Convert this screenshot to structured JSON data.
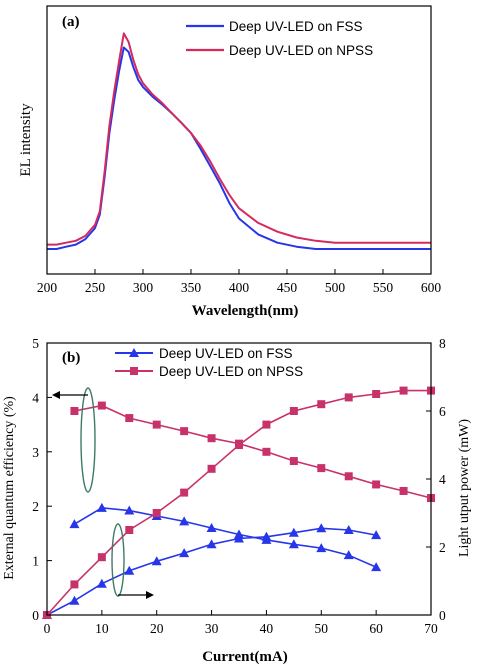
{
  "chart_data": [
    {
      "panel_label": "(a)",
      "type": "line",
      "xlabel": "Wavelength(nm)",
      "ylabel": "EL intensity",
      "xlim": [
        200,
        600
      ],
      "x_ticks": [
        200,
        250,
        300,
        350,
        400,
        450,
        500,
        550,
        600
      ],
      "y_scale": "log",
      "y_tick_labels": "none",
      "grid": false,
      "legend": "top-right",
      "series": [
        {
          "name": "Deep UV-LED on FSS",
          "color": "#2636e8",
          "x": [
            200,
            210,
            220,
            230,
            240,
            250,
            255,
            260,
            265,
            270,
            275,
            280,
            285,
            290,
            295,
            300,
            310,
            320,
            330,
            340,
            350,
            360,
            370,
            380,
            390,
            400,
            420,
            440,
            460,
            480,
            500,
            520,
            540,
            560,
            580,
            600
          ],
          "y": [
            0.12,
            0.12,
            0.13,
            0.14,
            0.17,
            0.25,
            0.4,
            1.5,
            7,
            22,
            60,
            140,
            120,
            70,
            45,
            35,
            25,
            19,
            14,
            10,
            7,
            4,
            2.2,
            1.2,
            0.6,
            0.35,
            0.2,
            0.15,
            0.13,
            0.12,
            0.12,
            0.12,
            0.12,
            0.12,
            0.12,
            0.12
          ]
        },
        {
          "name": "Deep UV-LED on NPSS",
          "color": "#d42a5e",
          "x": [
            200,
            210,
            220,
            230,
            240,
            250,
            255,
            260,
            265,
            270,
            275,
            280,
            285,
            290,
            295,
            300,
            310,
            320,
            330,
            340,
            350,
            360,
            370,
            380,
            390,
            400,
            420,
            440,
            460,
            480,
            500,
            520,
            540,
            560,
            580,
            600
          ],
          "y": [
            0.14,
            0.14,
            0.15,
            0.16,
            0.19,
            0.28,
            0.45,
            1.8,
            9,
            30,
            85,
            230,
            170,
            90,
            55,
            40,
            27,
            20,
            14,
            10,
            7,
            4.5,
            2.6,
            1.4,
            0.8,
            0.5,
            0.3,
            0.22,
            0.18,
            0.16,
            0.15,
            0.15,
            0.15,
            0.15,
            0.15,
            0.15
          ]
        }
      ]
    },
    {
      "panel_label": "(b)",
      "type": "line",
      "xlabel": "Current(mA)",
      "ylabel_left": "External quantum efficiency (%)",
      "ylabel_right": "Light  utput power (mW)",
      "xlim": [
        0,
        70
      ],
      "x_ticks": [
        0,
        10,
        20,
        30,
        40,
        50,
        60,
        70
      ],
      "ylim_left": [
        0,
        5
      ],
      "y_ticks_left": [
        0,
        1,
        2,
        3,
        4,
        5
      ],
      "ylim_right": [
        0,
        8
      ],
      "y_ticks_right": [
        0,
        2,
        4,
        6,
        8
      ],
      "grid": false,
      "legend": "top-center",
      "series": [
        {
          "name": "Deep UV-LED on FSS",
          "color": "#2636e8",
          "marker": "triangle",
          "axis": "left",
          "role": "efficiency",
          "x": [
            5,
            10,
            15,
            20,
            25,
            30,
            35,
            40,
            45,
            50,
            55,
            60
          ],
          "y": [
            1.67,
            1.97,
            1.92,
            1.82,
            1.72,
            1.6,
            1.48,
            1.38,
            1.3,
            1.23,
            1.1,
            0.88
          ]
        },
        {
          "name": "Deep UV-LED on FSS",
          "color": "#2636e8",
          "marker": "triangle",
          "axis": "right",
          "role": "power",
          "x": [
            0,
            5,
            10,
            15,
            20,
            25,
            30,
            35,
            40,
            45,
            50,
            55,
            60
          ],
          "y": [
            0,
            0.42,
            0.92,
            1.3,
            1.58,
            1.82,
            2.08,
            2.25,
            2.3,
            2.42,
            2.55,
            2.5,
            2.35
          ]
        },
        {
          "name": "Deep UV-LED on NPSS",
          "color": "#c8326b",
          "marker": "square",
          "axis": "left",
          "role": "efficiency",
          "x": [
            5,
            10,
            15,
            20,
            25,
            30,
            35,
            40,
            45,
            50,
            55,
            60,
            65,
            70
          ],
          "y": [
            3.75,
            3.85,
            3.62,
            3.5,
            3.38,
            3.25,
            3.15,
            3.0,
            2.83,
            2.7,
            2.55,
            2.4,
            2.28,
            2.15
          ]
        },
        {
          "name": "Deep UV-LED on NPSS",
          "color": "#c8326b",
          "marker": "square",
          "axis": "right",
          "role": "power",
          "x": [
            0,
            5,
            10,
            15,
            20,
            25,
            30,
            35,
            40,
            45,
            50,
            55,
            60,
            65,
            70
          ],
          "y": [
            0,
            0.9,
            1.7,
            2.5,
            3.0,
            3.6,
            4.3,
            5.0,
            5.6,
            6.0,
            6.2,
            6.4,
            6.5,
            6.6,
            6.6
          ]
        }
      ]
    }
  ]
}
